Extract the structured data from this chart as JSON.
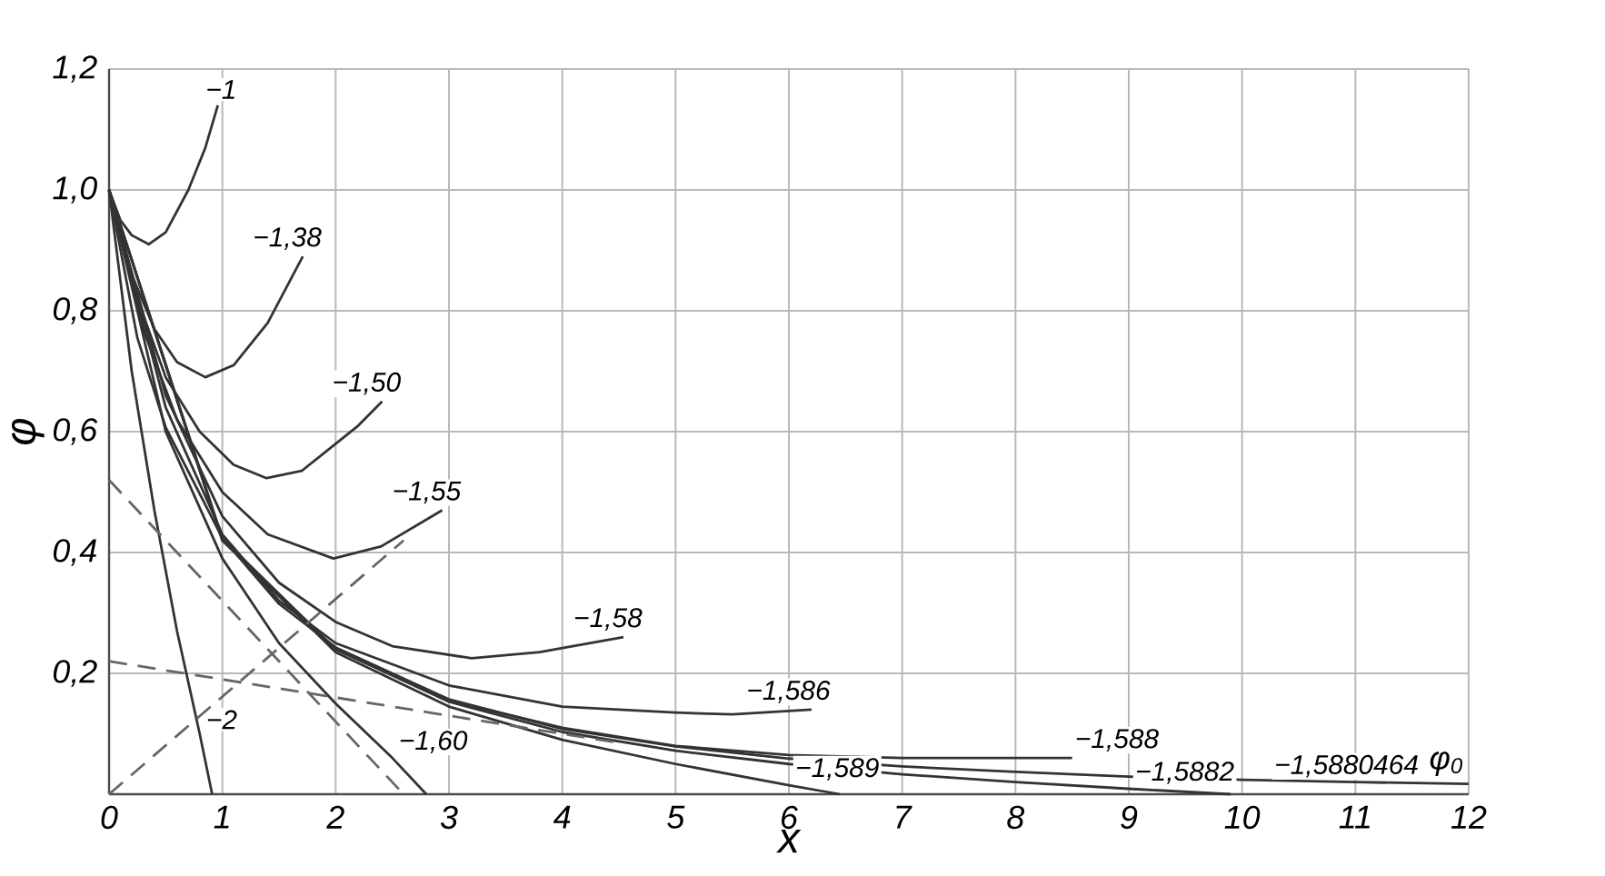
{
  "chart_data": {
    "type": "line",
    "xlabel": "x",
    "ylabel": "φ",
    "xlim": [
      0,
      12
    ],
    "ylim": [
      0,
      1.2
    ],
    "xticks": [
      0,
      1,
      2,
      3,
      4,
      5,
      6,
      7,
      8,
      9,
      10,
      11,
      12
    ],
    "yticks": [
      {
        "value": 0.2,
        "label": "0,2"
      },
      {
        "value": 0.4,
        "label": "0,4"
      },
      {
        "value": 0.6,
        "label": "0,6"
      },
      {
        "value": 0.8,
        "label": "0,8"
      },
      {
        "value": 1.0,
        "label": "1,0"
      },
      {
        "value": 1.2,
        "label": "1,2"
      }
    ],
    "grid": true,
    "marker": "none",
    "line_style": "solid",
    "annotations": [
      {
        "text": "φ$_{0}$",
        "x": 12,
        "y": 0.017
      }
    ],
    "series": [
      {
        "name": "−1",
        "color": "#333333",
        "x": [
          0,
          0.1,
          0.2,
          0.35,
          0.5,
          0.7,
          0.85,
          0.96
        ],
        "values": [
          1,
          0.95,
          0.925,
          0.91,
          0.93,
          1.0,
          1.07,
          1.14
        ]
      },
      {
        "name": "−1,38",
        "color": "#333333",
        "x": [
          0,
          0.2,
          0.4,
          0.6,
          0.85,
          1.1,
          1.4,
          1.71
        ],
        "values": [
          1,
          0.86,
          0.77,
          0.715,
          0.69,
          0.71,
          0.78,
          0.89
        ]
      },
      {
        "name": "−1,50",
        "color": "#333333",
        "x": [
          0,
          0.25,
          0.5,
          0.8,
          1.1,
          1.39,
          1.7,
          2.0,
          2.2,
          2.41
        ],
        "values": [
          1,
          0.82,
          0.69,
          0.6,
          0.545,
          0.523,
          0.535,
          0.58,
          0.61,
          0.65
        ]
      },
      {
        "name": "−1,55",
        "color": "#333333",
        "x": [
          0,
          0.3,
          0.6,
          1.0,
          1.4,
          1.98,
          2.4,
          2.94
        ],
        "values": [
          1,
          0.77,
          0.62,
          0.5,
          0.43,
          0.39,
          0.41,
          0.47
        ]
      },
      {
        "name": "−1,58",
        "color": "#333333",
        "x": [
          0,
          0.5,
          1,
          1.5,
          2,
          2.5,
          3.2,
          3.8,
          4.54
        ],
        "values": [
          1,
          0.66,
          0.46,
          0.35,
          0.285,
          0.245,
          0.225,
          0.235,
          0.26
        ]
      },
      {
        "name": "−1,586",
        "color": "#333333",
        "x": [
          0,
          0.5,
          1,
          1.5,
          2,
          3,
          4,
          5,
          5.5,
          6.2
        ],
        "values": [
          1,
          0.64,
          0.43,
          0.32,
          0.25,
          0.18,
          0.145,
          0.135,
          0.132,
          0.14
        ]
      },
      {
        "name": "−1,588",
        "color": "#333333",
        "x": [
          0,
          1,
          2,
          3,
          4,
          5,
          6,
          7,
          8.5
        ],
        "values": [
          1,
          0.42,
          0.24,
          0.155,
          0.11,
          0.08,
          0.065,
          0.06,
          0.06
        ]
      },
      {
        "name": "−1,5880464",
        "color": "#333333",
        "x": [
          0,
          0.25,
          0.5,
          1,
          1.5,
          2,
          3,
          4,
          5,
          6,
          7,
          8,
          9,
          10,
          11,
          12
        ],
        "values": [
          1,
          0.755,
          0.607,
          0.424,
          0.315,
          0.243,
          0.157,
          0.108,
          0.079,
          0.059,
          0.046,
          0.037,
          0.029,
          0.024,
          0.02,
          0.017
        ]
      },
      {
        "name": "−1,5882",
        "color": "#333333",
        "x": [
          0,
          1,
          2,
          3,
          4,
          5,
          6,
          7,
          8,
          9,
          9.9
        ],
        "values": [
          1,
          0.423,
          0.24,
          0.153,
          0.103,
          0.072,
          0.05,
          0.033,
          0.02,
          0.009,
          0
        ]
      },
      {
        "name": "−1,589",
        "color": "#333333",
        "x": [
          0,
          1,
          2,
          3,
          4,
          5,
          6,
          6.45
        ],
        "values": [
          1,
          0.42,
          0.235,
          0.145,
          0.09,
          0.05,
          0.015,
          0
        ]
      },
      {
        "name": "−1,60",
        "color": "#333333",
        "x": [
          0,
          0.5,
          1,
          1.5,
          2,
          2.5,
          2.8
        ],
        "values": [
          1,
          0.6,
          0.39,
          0.25,
          0.15,
          0.06,
          0
        ]
      },
      {
        "name": "−2",
        "color": "#333333",
        "x": [
          0,
          0.2,
          0.4,
          0.6,
          0.8,
          0.91
        ],
        "values": [
          1,
          0.7,
          0.47,
          0.27,
          0.1,
          0
        ]
      },
      {
        "color": "#666666",
        "line_style": "dashed",
        "x": [
          0,
          2.6
        ],
        "values": [
          0.52,
          0
        ]
      },
      {
        "color": "#666666",
        "line_style": "dashed",
        "x": [
          0,
          4.5
        ],
        "values": [
          0.22,
          0.085
        ]
      },
      {
        "color": "#666666",
        "line_style": "dashed",
        "x": [
          0,
          2.6
        ],
        "values": [
          0,
          0.42
        ]
      }
    ]
  }
}
